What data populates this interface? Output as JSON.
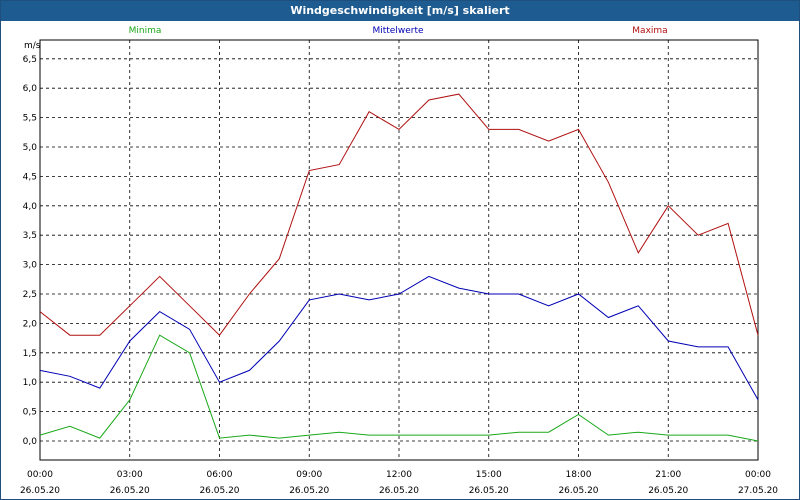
{
  "window": {
    "title": "Windgeschwindigkeit [m/s] skaliert"
  },
  "chart_data": {
    "type": "line",
    "title": "Windgeschwindigkeit [m/s] skaliert",
    "ylabel": "m/s",
    "xlabel": "",
    "ylim": [
      0,
      6.5
    ],
    "xlim": [
      0,
      24
    ],
    "grid": true,
    "legend_position": "top",
    "y_ticks": [
      "0,0",
      "0,5",
      "1,0",
      "1,5",
      "2,0",
      "2,5",
      "3,0",
      "3,5",
      "4,0",
      "4,5",
      "5,0",
      "5,5",
      "6,0",
      "6,5"
    ],
    "x_ticks": [
      {
        "time": "00:00",
        "date": "26.05.20"
      },
      {
        "time": "03:00",
        "date": "26.05.20"
      },
      {
        "time": "06:00",
        "date": "26.05.20"
      },
      {
        "time": "09:00",
        "date": "26.05.20"
      },
      {
        "time": "12:00",
        "date": "26.05.20"
      },
      {
        "time": "15:00",
        "date": "26.05.20"
      },
      {
        "time": "18:00",
        "date": "26.05.20"
      },
      {
        "time": "21:00",
        "date": "26.05.20"
      },
      {
        "time": "00:00",
        "date": "27.05.20"
      }
    ],
    "x_hours": [
      0,
      1,
      2,
      3,
      4,
      5,
      6,
      7,
      8,
      9,
      10,
      11,
      12,
      13,
      14,
      15,
      16,
      17,
      18,
      19,
      20,
      21,
      22,
      23,
      24
    ],
    "series": [
      {
        "name": "Minima",
        "color": "#1aa81a",
        "values": [
          0.1,
          0.25,
          0.05,
          0.7,
          1.8,
          1.5,
          0.05,
          0.1,
          0.05,
          0.1,
          0.15,
          0.1,
          0.1,
          0.1,
          0.1,
          0.1,
          0.15,
          0.15,
          0.45,
          0.1,
          0.15,
          0.1,
          0.1,
          0.1,
          0.0
        ]
      },
      {
        "name": "Mittelwerte",
        "color": "#0000b4",
        "values": [
          1.2,
          1.1,
          0.9,
          1.7,
          2.2,
          1.9,
          1.0,
          1.2,
          1.7,
          2.4,
          2.5,
          2.4,
          2.5,
          2.8,
          2.6,
          2.5,
          2.5,
          2.3,
          2.5,
          2.1,
          2.3,
          1.7,
          1.6,
          1.6,
          0.7
        ]
      },
      {
        "name": "Maxima",
        "color": "#b01010",
        "values": [
          2.2,
          1.8,
          1.8,
          2.3,
          2.8,
          2.3,
          1.8,
          2.5,
          3.1,
          4.6,
          4.7,
          5.6,
          5.3,
          5.8,
          5.9,
          5.3,
          5.3,
          5.1,
          5.3,
          4.4,
          3.2,
          4.0,
          3.5,
          3.7,
          1.8
        ]
      }
    ]
  }
}
